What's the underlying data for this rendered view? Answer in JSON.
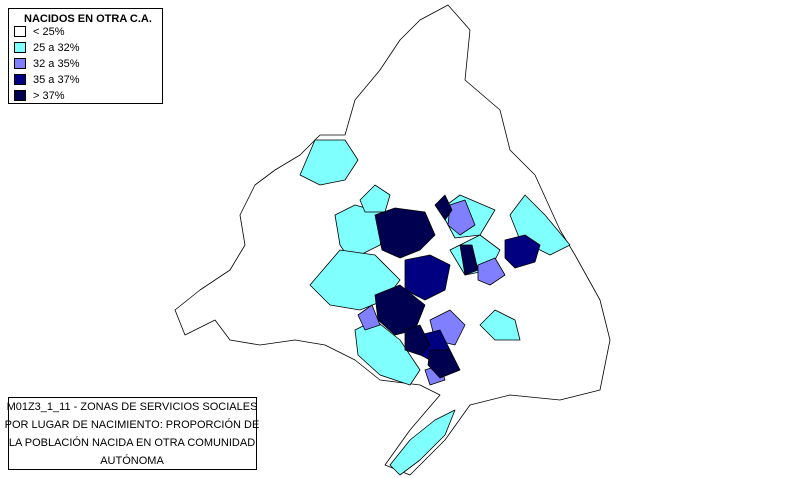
{
  "legend": {
    "title": "NACIDOS EN OTRA C.A.",
    "items": [
      {
        "label": "< 25%",
        "color": "#ffffff"
      },
      {
        "label": "25 a 32%",
        "color": "#80ffff"
      },
      {
        "label": "32 a 35%",
        "color": "#8080ff"
      },
      {
        "label": "35 a 37%",
        "color": "#000080"
      },
      {
        "label": "> 37%",
        "color": "#000050"
      }
    ]
  },
  "caption": {
    "lines": [
      "M01Z3_1_11 - ZONAS DE SERVICIOS SOCIALES",
      "POR LUGAR DE NACIMIENTO: PROPORCIÓN DE",
      "LA POBLACIÓN NACIDA EN OTRA COMUNIDAD",
      "AUTÓNOMA"
    ]
  }
}
